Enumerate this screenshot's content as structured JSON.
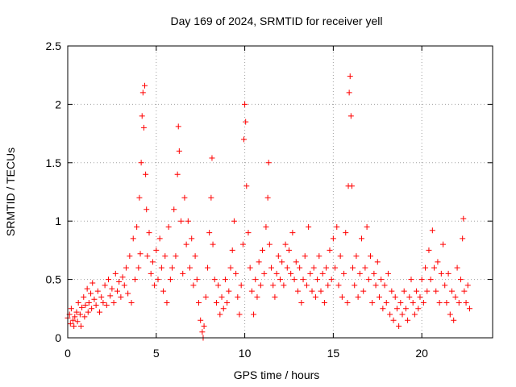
{
  "chart_data": {
    "type": "scatter",
    "title": "Day 169 of 2024, SRMTID for receiver yell",
    "xlabel": "GPS time / hours",
    "ylabel": "SRMTID / TECUs",
    "xlim": [
      0,
      24
    ],
    "ylim": [
      0,
      2.5
    ],
    "grid": true,
    "marker": "+",
    "color": "#ff0000",
    "x_ticks": [
      0,
      5,
      10,
      15,
      20
    ],
    "x_tick_labels": [
      "0",
      "5",
      "10",
      "15",
      "20"
    ],
    "y_ticks": [
      0,
      0.5,
      1,
      1.5,
      2,
      2.5
    ],
    "y_tick_labels": [
      "0",
      "0.5",
      "1",
      "1.5",
      "2",
      "2.5"
    ],
    "series": [
      {
        "name": "yell",
        "points": [
          [
            0.0,
            0.17
          ],
          [
            0.1,
            0.2
          ],
          [
            0.15,
            0.12
          ],
          [
            0.2,
            0.25
          ],
          [
            0.3,
            0.15
          ],
          [
            0.35,
            0.1
          ],
          [
            0.4,
            0.18
          ],
          [
            0.5,
            0.22
          ],
          [
            0.55,
            0.14
          ],
          [
            0.6,
            0.3
          ],
          [
            0.7,
            0.2
          ],
          [
            0.75,
            0.1
          ],
          [
            0.8,
            0.26
          ],
          [
            0.9,
            0.35
          ],
          [
            0.95,
            0.18
          ],
          [
            1.0,
            0.28
          ],
          [
            1.1,
            0.42
          ],
          [
            1.15,
            0.22
          ],
          [
            1.2,
            0.3
          ],
          [
            1.3,
            0.38
          ],
          [
            1.35,
            0.25
          ],
          [
            1.4,
            0.47
          ],
          [
            1.5,
            0.33
          ],
          [
            1.6,
            0.28
          ],
          [
            1.7,
            0.4
          ],
          [
            1.8,
            0.22
          ],
          [
            1.9,
            0.35
          ],
          [
            2.0,
            0.3
          ],
          [
            2.1,
            0.45
          ],
          [
            2.2,
            0.28
          ],
          [
            2.3,
            0.5
          ],
          [
            2.4,
            0.36
          ],
          [
            2.5,
            0.42
          ],
          [
            2.6,
            0.3
          ],
          [
            2.7,
            0.55
          ],
          [
            2.8,
            0.4
          ],
          [
            2.9,
            0.48
          ],
          [
            3.0,
            0.35
          ],
          [
            3.1,
            0.52
          ],
          [
            3.2,
            0.45
          ],
          [
            3.3,
            0.6
          ],
          [
            3.4,
            0.38
          ],
          [
            3.5,
            0.7
          ],
          [
            3.6,
            0.3
          ],
          [
            3.7,
            0.85
          ],
          [
            3.8,
            0.5
          ],
          [
            3.9,
            0.95
          ],
          [
            4.0,
            0.6
          ],
          [
            4.05,
            1.2
          ],
          [
            4.1,
            0.72
          ],
          [
            4.15,
            1.5
          ],
          [
            4.2,
            1.9
          ],
          [
            4.25,
            2.1
          ],
          [
            4.3,
            1.8
          ],
          [
            4.35,
            2.16
          ],
          [
            4.4,
            1.4
          ],
          [
            4.45,
            1.1
          ],
          [
            4.5,
            0.7
          ],
          [
            4.6,
            0.9
          ],
          [
            4.7,
            0.55
          ],
          [
            4.8,
            0.65
          ],
          [
            4.9,
            0.45
          ],
          [
            5.0,
            0.75
          ],
          [
            5.1,
            0.5
          ],
          [
            5.2,
            0.85
          ],
          [
            5.3,
            0.6
          ],
          [
            5.4,
            0.4
          ],
          [
            5.5,
            0.7
          ],
          [
            5.6,
            0.3
          ],
          [
            5.7,
            0.95
          ],
          [
            5.8,
            0.5
          ],
          [
            5.9,
            0.6
          ],
          [
            6.0,
            1.1
          ],
          [
            6.1,
            0.7
          ],
          [
            6.2,
            1.4
          ],
          [
            6.25,
            1.81
          ],
          [
            6.3,
            1.6
          ],
          [
            6.4,
            1.0
          ],
          [
            6.5,
            0.55
          ],
          [
            6.6,
            1.2
          ],
          [
            6.7,
            0.8
          ],
          [
            6.8,
            1.0
          ],
          [
            6.9,
            0.6
          ],
          [
            7.0,
            0.85
          ],
          [
            7.1,
            0.45
          ],
          [
            7.2,
            0.7
          ],
          [
            7.3,
            0.5
          ],
          [
            7.4,
            0.3
          ],
          [
            7.5,
            0.15
          ],
          [
            7.6,
            0.05
          ],
          [
            7.65,
            0.0
          ],
          [
            7.7,
            0.1
          ],
          [
            7.8,
            0.35
          ],
          [
            7.9,
            0.6
          ],
          [
            8.0,
            0.9
          ],
          [
            8.1,
            1.2
          ],
          [
            8.15,
            1.54
          ],
          [
            8.2,
            0.8
          ],
          [
            8.3,
            0.5
          ],
          [
            8.4,
            0.3
          ],
          [
            8.5,
            0.45
          ],
          [
            8.6,
            0.2
          ],
          [
            8.7,
            0.35
          ],
          [
            8.8,
            0.25
          ],
          [
            8.9,
            0.5
          ],
          [
            9.0,
            0.3
          ],
          [
            9.1,
            0.4
          ],
          [
            9.2,
            0.6
          ],
          [
            9.3,
            0.75
          ],
          [
            9.4,
            1.0
          ],
          [
            9.5,
            0.55
          ],
          [
            9.6,
            0.35
          ],
          [
            9.7,
            0.2
          ],
          [
            9.8,
            0.45
          ],
          [
            9.9,
            0.8
          ],
          [
            9.95,
            1.7
          ],
          [
            10.0,
            2.0
          ],
          [
            10.05,
            1.85
          ],
          [
            10.1,
            1.3
          ],
          [
            10.2,
            0.9
          ],
          [
            10.3,
            0.6
          ],
          [
            10.4,
            0.4
          ],
          [
            10.5,
            0.2
          ],
          [
            10.6,
            0.5
          ],
          [
            10.7,
            0.35
          ],
          [
            10.8,
            0.65
          ],
          [
            10.9,
            0.45
          ],
          [
            11.0,
            0.75
          ],
          [
            11.1,
            0.55
          ],
          [
            11.2,
            0.95
          ],
          [
            11.3,
            1.2
          ],
          [
            11.35,
            1.5
          ],
          [
            11.4,
            0.8
          ],
          [
            11.5,
            0.6
          ],
          [
            11.6,
            0.45
          ],
          [
            11.7,
            0.35
          ],
          [
            11.8,
            0.55
          ],
          [
            11.9,
            0.7
          ],
          [
            12.0,
            0.5
          ],
          [
            12.1,
            0.65
          ],
          [
            12.2,
            0.45
          ],
          [
            12.3,
            0.8
          ],
          [
            12.4,
            0.6
          ],
          [
            12.5,
            0.75
          ],
          [
            12.6,
            0.55
          ],
          [
            12.7,
            0.9
          ],
          [
            12.8,
            0.5
          ],
          [
            12.9,
            0.65
          ],
          [
            13.0,
            0.4
          ],
          [
            13.1,
            0.6
          ],
          [
            13.2,
            0.3
          ],
          [
            13.3,
            0.5
          ],
          [
            13.4,
            0.7
          ],
          [
            13.5,
            0.45
          ],
          [
            13.6,
            0.95
          ],
          [
            13.7,
            0.55
          ],
          [
            13.8,
            0.4
          ],
          [
            13.9,
            0.6
          ],
          [
            14.0,
            0.35
          ],
          [
            14.1,
            0.5
          ],
          [
            14.2,
            0.7
          ],
          [
            14.3,
            0.4
          ],
          [
            14.4,
            0.55
          ],
          [
            14.5,
            0.3
          ],
          [
            14.6,
            0.6
          ],
          [
            14.7,
            0.45
          ],
          [
            14.8,
            0.75
          ],
          [
            14.9,
            0.5
          ],
          [
            15.0,
            0.85
          ],
          [
            15.1,
            0.6
          ],
          [
            15.2,
            0.95
          ],
          [
            15.3,
            0.45
          ],
          [
            15.4,
            0.7
          ],
          [
            15.5,
            0.35
          ],
          [
            15.6,
            0.55
          ],
          [
            15.7,
            0.9
          ],
          [
            15.8,
            0.3
          ],
          [
            15.85,
            1.3
          ],
          [
            15.9,
            2.1
          ],
          [
            15.95,
            2.24
          ],
          [
            16.0,
            1.9
          ],
          [
            16.05,
            1.3
          ],
          [
            16.1,
            0.6
          ],
          [
            16.2,
            0.45
          ],
          [
            16.3,
            0.7
          ],
          [
            16.4,
            0.35
          ],
          [
            16.5,
            0.55
          ],
          [
            16.6,
            0.85
          ],
          [
            16.7,
            0.4
          ],
          [
            16.8,
            0.6
          ],
          [
            16.9,
            0.95
          ],
          [
            17.0,
            0.5
          ],
          [
            17.1,
            0.7
          ],
          [
            17.2,
            0.3
          ],
          [
            17.3,
            0.55
          ],
          [
            17.4,
            0.45
          ],
          [
            17.5,
            0.65
          ],
          [
            17.6,
            0.35
          ],
          [
            17.7,
            0.5
          ],
          [
            17.8,
            0.25
          ],
          [
            17.9,
            0.45
          ],
          [
            18.0,
            0.3
          ],
          [
            18.1,
            0.55
          ],
          [
            18.2,
            0.2
          ],
          [
            18.3,
            0.4
          ],
          [
            18.4,
            0.15
          ],
          [
            18.5,
            0.35
          ],
          [
            18.6,
            0.25
          ],
          [
            18.7,
            0.1
          ],
          [
            18.8,
            0.3
          ],
          [
            18.9,
            0.2
          ],
          [
            19.0,
            0.4
          ],
          [
            19.1,
            0.25
          ],
          [
            19.2,
            0.15
          ],
          [
            19.3,
            0.35
          ],
          [
            19.4,
            0.5
          ],
          [
            19.5,
            0.3
          ],
          [
            19.6,
            0.2
          ],
          [
            19.7,
            0.4
          ],
          [
            19.8,
            0.25
          ],
          [
            19.9,
            0.35
          ],
          [
            20.0,
            0.5
          ],
          [
            20.1,
            0.3
          ],
          [
            20.2,
            0.6
          ],
          [
            20.3,
            0.4
          ],
          [
            20.4,
            0.75
          ],
          [
            20.5,
            0.5
          ],
          [
            20.6,
            0.92
          ],
          [
            20.7,
            0.6
          ],
          [
            20.8,
            0.4
          ],
          [
            20.9,
            0.65
          ],
          [
            21.0,
            0.3
          ],
          [
            21.1,
            0.55
          ],
          [
            21.2,
            0.8
          ],
          [
            21.3,
            0.45
          ],
          [
            21.4,
            0.3
          ],
          [
            21.5,
            0.55
          ],
          [
            21.6,
            0.2
          ],
          [
            21.7,
            0.4
          ],
          [
            21.8,
            0.15
          ],
          [
            21.9,
            0.35
          ],
          [
            22.0,
            0.6
          ],
          [
            22.1,
            0.3
          ],
          [
            22.2,
            0.5
          ],
          [
            22.3,
            0.85
          ],
          [
            22.35,
            1.02
          ],
          [
            22.4,
            0.4
          ],
          [
            22.5,
            0.3
          ],
          [
            22.6,
            0.45
          ],
          [
            22.7,
            0.25
          ]
        ]
      }
    ]
  }
}
